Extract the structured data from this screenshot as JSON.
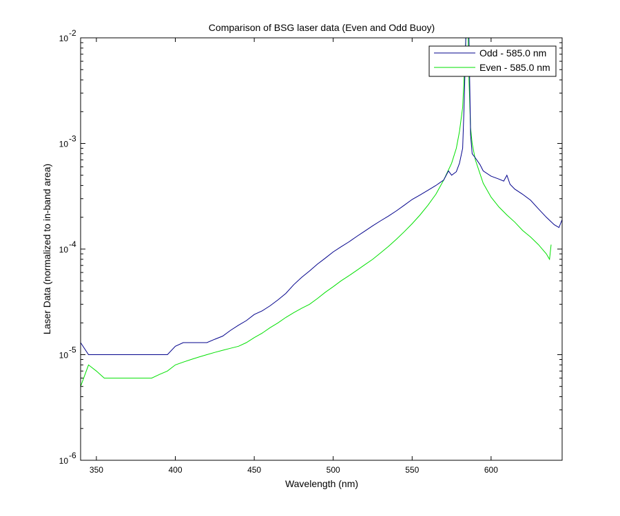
{
  "chart_data": {
    "type": "line",
    "title": "Comparison of BSG laser data (Even and Odd Buoy)",
    "xlabel": "Wavelength (nm)",
    "ylabel": "Laser Data (normalized to in-band area)",
    "xlim": [
      340,
      645
    ],
    "ylim": [
      1e-06,
      0.01
    ],
    "yscale": "log",
    "grid": false,
    "legend_position": "top-right",
    "x_ticks": [
      350,
      400,
      450,
      500,
      550,
      600
    ],
    "x_tick_labels": [
      "350",
      "400",
      "450",
      "500",
      "550",
      "600"
    ],
    "y_ticks": [
      {
        "value": 0.01,
        "base": "10",
        "exp": "-2"
      },
      {
        "value": 0.001,
        "base": "10",
        "exp": "-3"
      },
      {
        "value": 0.0001,
        "base": "10",
        "exp": "-4"
      },
      {
        "value": 1e-05,
        "base": "10",
        "exp": "-5"
      },
      {
        "value": 1e-06,
        "base": "10",
        "exp": "-6"
      }
    ],
    "series": [
      {
        "name": "Odd - 585.0 nm",
        "color": "#00008b",
        "x": [
          340,
          345,
          350,
          355,
          360,
          365,
          370,
          375,
          380,
          385,
          390,
          395,
          400,
          405,
          410,
          415,
          420,
          425,
          430,
          435,
          440,
          445,
          450,
          455,
          460,
          465,
          470,
          475,
          480,
          485,
          490,
          495,
          500,
          505,
          510,
          515,
          520,
          525,
          530,
          535,
          540,
          545,
          550,
          555,
          560,
          565,
          570,
          573,
          575,
          578,
          580,
          582,
          583,
          584,
          584.5,
          585,
          585.5,
          586,
          587,
          588,
          590,
          593,
          595,
          600,
          605,
          608,
          610,
          612,
          615,
          620,
          625,
          630,
          635,
          640,
          643,
          645
        ],
        "y": [
          1.3e-05,
          1e-05,
          1e-05,
          1e-05,
          1e-05,
          1e-05,
          1e-05,
          1e-05,
          1e-05,
          1e-05,
          1e-05,
          1e-05,
          1.2e-05,
          1.3e-05,
          1.3e-05,
          1.3e-05,
          1.3e-05,
          1.4e-05,
          1.5e-05,
          1.7e-05,
          1.9e-05,
          2.1e-05,
          2.4e-05,
          2.6e-05,
          2.9e-05,
          3.3e-05,
          3.8e-05,
          4.6e-05,
          5.4e-05,
          6.2e-05,
          7.2e-05,
          8.2e-05,
          9.4e-05,
          0.000105,
          0.000117,
          0.000132,
          0.000148,
          0.000166,
          0.000185,
          0.000205,
          0.00023,
          0.00026,
          0.000295,
          0.000325,
          0.00036,
          0.0004,
          0.00045,
          0.00055,
          0.0005,
          0.00054,
          0.00065,
          0.0009,
          0.0025,
          0.01,
          0.01,
          0.01,
          0.01,
          0.01,
          0.0012,
          0.0008,
          0.00073,
          0.00063,
          0.00055,
          0.00049,
          0.00046,
          0.00044,
          0.0005,
          0.00041,
          0.00037,
          0.00033,
          0.00029,
          0.00024,
          0.0002,
          0.00017,
          0.00016,
          0.00019
        ]
      },
      {
        "name": "Even - 585.0 nm",
        "color": "#00e000",
        "x": [
          340,
          345,
          350,
          355,
          360,
          365,
          370,
          375,
          380,
          385,
          390,
          395,
          400,
          405,
          410,
          415,
          420,
          425,
          430,
          435,
          440,
          445,
          450,
          455,
          460,
          465,
          470,
          475,
          480,
          485,
          490,
          495,
          500,
          505,
          510,
          515,
          520,
          525,
          530,
          535,
          540,
          545,
          550,
          555,
          560,
          565,
          570,
          575,
          578,
          580,
          582,
          583,
          584,
          584.5,
          585,
          585.5,
          586,
          587,
          588,
          590,
          595,
          600,
          605,
          610,
          615,
          620,
          625,
          630,
          635,
          637,
          638
        ],
        "y": [
          5e-06,
          8e-06,
          7e-06,
          6e-06,
          6e-06,
          6e-06,
          6e-06,
          6e-06,
          6e-06,
          6e-06,
          6.5e-06,
          7e-06,
          8e-06,
          8.5e-06,
          9e-06,
          9.5e-06,
          1e-05,
          1.05e-05,
          1.1e-05,
          1.15e-05,
          1.2e-05,
          1.3e-05,
          1.45e-05,
          1.6e-05,
          1.8e-05,
          2e-05,
          2.25e-05,
          2.5e-05,
          2.75e-05,
          3e-05,
          3.4e-05,
          3.9e-05,
          4.4e-05,
          5e-05,
          5.6e-05,
          6.3e-05,
          7.1e-05,
          8e-05,
          9.2e-05,
          0.000106,
          0.000124,
          0.000146,
          0.000174,
          0.00021,
          0.00026,
          0.00033,
          0.00045,
          0.00065,
          0.0009,
          0.0013,
          0.0022,
          0.0045,
          0.01,
          0.01,
          0.01,
          0.01,
          0.004,
          0.0014,
          0.001,
          0.0007,
          0.00042,
          0.00031,
          0.00025,
          0.00021,
          0.00018,
          0.00015,
          0.00013,
          0.00011,
          9e-05,
          8e-05,
          0.00011
        ]
      }
    ]
  }
}
